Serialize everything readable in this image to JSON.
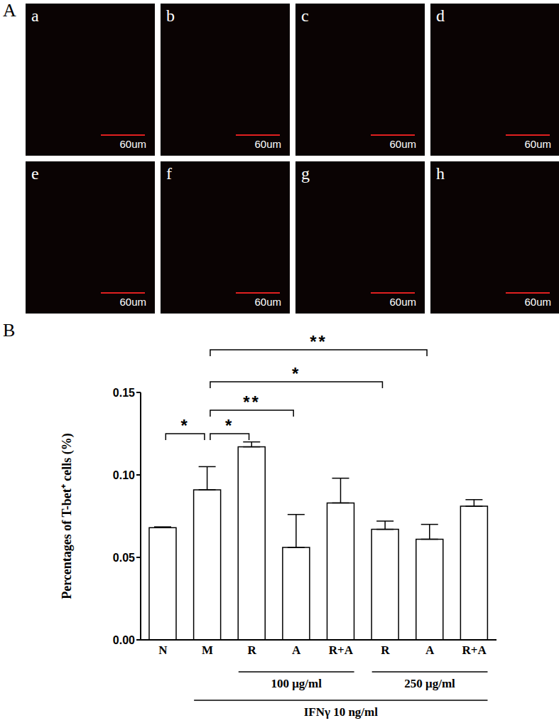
{
  "figure": {
    "panel_labels": [
      "A",
      "B"
    ],
    "images": [
      {
        "label": "a",
        "scale_bar": "60um"
      },
      {
        "label": "b",
        "scale_bar": "60um"
      },
      {
        "label": "c",
        "scale_bar": "60um"
      },
      {
        "label": "d",
        "scale_bar": "60um"
      },
      {
        "label": "e",
        "scale_bar": "60um"
      },
      {
        "label": "f",
        "scale_bar": "60um"
      },
      {
        "label": "g",
        "scale_bar": "60um"
      },
      {
        "label": "h",
        "scale_bar": "60um"
      }
    ]
  },
  "chart_data": {
    "type": "bar",
    "y_label": "Percentages of T-bet⁺ cells (%)",
    "categories": [
      "N",
      "M",
      "R",
      "A",
      "R+A",
      "R",
      "A",
      "R+A"
    ],
    "values": [
      0.068,
      0.091,
      0.117,
      0.056,
      0.083,
      0.067,
      0.061,
      0.081
    ],
    "errors": [
      0.0005,
      0.014,
      0.003,
      0.02,
      0.015,
      0.005,
      0.009,
      0.004
    ],
    "color": "#ffffff",
    "ylim": [
      0,
      0.15
    ],
    "yticks": [
      {
        "value": 0,
        "label": "0.00"
      },
      {
        "value": 0.05,
        "label": "0.05"
      },
      {
        "value": 0.1,
        "label": "0.10"
      },
      {
        "value": 0.15,
        "label": "0.15"
      }
    ],
    "grid": false,
    "significance": [
      {
        "from": 0,
        "to": 1,
        "label": "*"
      },
      {
        "from": 1,
        "to": 2,
        "label": "*"
      },
      {
        "from": 1,
        "to": 3,
        "label": "**"
      },
      {
        "from": 1,
        "to": 5,
        "label": "*"
      },
      {
        "from": 1,
        "to": 6,
        "label": "**"
      }
    ],
    "groups": [
      {
        "label": "100 μg/ml",
        "from": 2,
        "to": 4
      },
      {
        "label": "250 μg/ml",
        "from": 5,
        "to": 7
      },
      {
        "label": "IFNγ 10 ng/ml",
        "from": 1,
        "to": 7
      }
    ]
  }
}
